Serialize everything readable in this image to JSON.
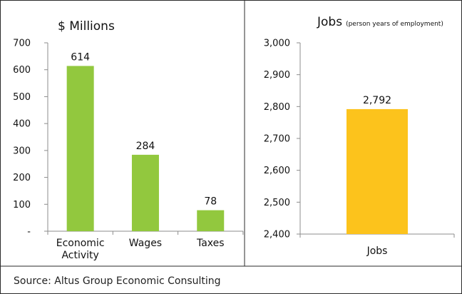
{
  "chart_data": [
    {
      "type": "bar",
      "title": "$ Millions",
      "categories": [
        "Economic Activity",
        "Wages",
        "Taxes"
      ],
      "category_lines": [
        [
          "Economic",
          "Activity"
        ],
        [
          "Wages"
        ],
        [
          "Taxes"
        ]
      ],
      "values": [
        614,
        284,
        78
      ],
      "data_labels": [
        "614",
        "284",
        "78"
      ],
      "ylim": [
        0,
        700
      ],
      "yticks": [
        0,
        100,
        200,
        300,
        400,
        500,
        600,
        700
      ],
      "ytick_labels": [
        "-",
        "100",
        "200",
        "300",
        "400",
        "500",
        "600",
        "700"
      ],
      "color": "#92c83e",
      "grid": false,
      "legend": "none"
    },
    {
      "type": "bar",
      "title": "Jobs",
      "subtitle": "(person years of employment)",
      "categories": [
        "Jobs"
      ],
      "category_lines": [
        [
          "Jobs"
        ]
      ],
      "values": [
        2792
      ],
      "data_labels": [
        "2,792"
      ],
      "ylim": [
        2400,
        3000
      ],
      "yticks": [
        2400,
        2500,
        2600,
        2700,
        2800,
        2900,
        3000
      ],
      "ytick_labels": [
        "2,400",
        "2,500",
        "2,600",
        "2,700",
        "2,800",
        "2,900",
        "3,000"
      ],
      "color": "#fcc31c",
      "grid": false,
      "legend": "none"
    }
  ],
  "source_note": "Source: Altus Group Economic Consulting"
}
